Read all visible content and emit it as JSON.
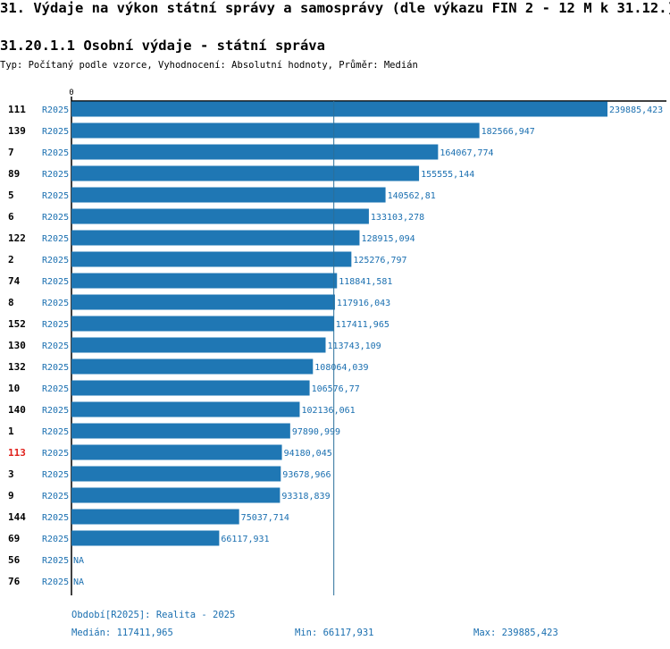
{
  "header": {
    "title": "31. Výdaje na výkon státní správy a samosprávy (dle výkazu FIN 2 - 12 M k 31.12.)",
    "subtitle": "31.20.1.1 Osobní výdaje - státní správa",
    "type_line": "Typ: Počítaný podle vzorce, Vyhodnocení: Absolutní hodnoty, Průměr: Medián"
  },
  "colors": {
    "bar": "#1f77b4",
    "period_text": "#1a6fb0",
    "highlight": "#e0201b",
    "label": "#000000",
    "median_line": "#2a6f9a"
  },
  "chart_data": {
    "type": "bar",
    "orientation": "horizontal",
    "axis_zero_label": "0",
    "xlim": [
      0,
      239885.423
    ],
    "median": 117411.965,
    "rows": [
      {
        "id": "111",
        "period": "R2025",
        "value": 239885.423,
        "label": "239885,423",
        "highlight": false
      },
      {
        "id": "139",
        "period": "R2025",
        "value": 182566.947,
        "label": "182566,947",
        "highlight": false
      },
      {
        "id": "7",
        "period": "R2025",
        "value": 164067.774,
        "label": "164067,774",
        "highlight": false
      },
      {
        "id": "89",
        "period": "R2025",
        "value": 155555.144,
        "label": "155555,144",
        "highlight": false
      },
      {
        "id": "5",
        "period": "R2025",
        "value": 140562.81,
        "label": "140562,81",
        "highlight": false
      },
      {
        "id": "6",
        "period": "R2025",
        "value": 133103.278,
        "label": "133103,278",
        "highlight": false
      },
      {
        "id": "122",
        "period": "R2025",
        "value": 128915.094,
        "label": "128915,094",
        "highlight": false
      },
      {
        "id": "2",
        "period": "R2025",
        "value": 125276.797,
        "label": "125276,797",
        "highlight": false
      },
      {
        "id": "74",
        "period": "R2025",
        "value": 118841.581,
        "label": "118841,581",
        "highlight": false
      },
      {
        "id": "8",
        "period": "R2025",
        "value": 117916.043,
        "label": "117916,043",
        "highlight": false
      },
      {
        "id": "152",
        "period": "R2025",
        "value": 117411.965,
        "label": "117411,965",
        "highlight": false
      },
      {
        "id": "130",
        "period": "R2025",
        "value": 113743.109,
        "label": "113743,109",
        "highlight": false
      },
      {
        "id": "132",
        "period": "R2025",
        "value": 108064.039,
        "label": "108064,039",
        "highlight": false
      },
      {
        "id": "10",
        "period": "R2025",
        "value": 106576.77,
        "label": "106576,77",
        "highlight": false
      },
      {
        "id": "140",
        "period": "R2025",
        "value": 102136.061,
        "label": "102136,061",
        "highlight": false
      },
      {
        "id": "1",
        "period": "R2025",
        "value": 97890.999,
        "label": "97890,999",
        "highlight": false
      },
      {
        "id": "113",
        "period": "R2025",
        "value": 94180.045,
        "label": "94180,045",
        "highlight": true
      },
      {
        "id": "3",
        "period": "R2025",
        "value": 93678.966,
        "label": "93678,966",
        "highlight": false
      },
      {
        "id": "9",
        "period": "R2025",
        "value": 93318.839,
        "label": "93318,839",
        "highlight": false
      },
      {
        "id": "144",
        "period": "R2025",
        "value": 75037.714,
        "label": "75037,714",
        "highlight": false
      },
      {
        "id": "69",
        "period": "R2025",
        "value": 66117.931,
        "label": "66117,931",
        "highlight": false
      },
      {
        "id": "56",
        "period": "R2025",
        "value": null,
        "label": "NA",
        "highlight": false
      },
      {
        "id": "76",
        "period": "R2025",
        "value": null,
        "label": "NA",
        "highlight": false
      }
    ]
  },
  "footer": {
    "period": "Období[R2025]: Realita - 2025",
    "median": "Medián: 117411,965",
    "min": "Min: 66117,931",
    "max": "Max: 239885,423"
  }
}
